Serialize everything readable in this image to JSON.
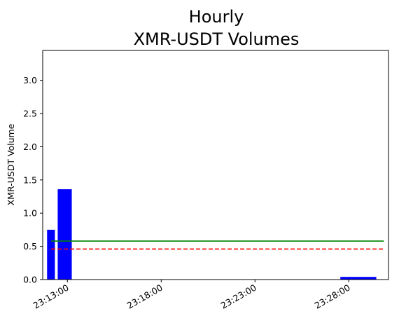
{
  "chart_data": {
    "type": "bar",
    "title_lines": [
      "Hourly",
      "XMR-USDT Volumes"
    ],
    "xlabel": "",
    "ylabel": "XMR-USDT Volume",
    "ylim": [
      0,
      3.45
    ],
    "xlim": [
      "23:11:41",
      "23:30:07"
    ],
    "yticks": [
      0.0,
      0.5,
      1.0,
      1.5,
      2.0,
      2.5,
      3.0
    ],
    "ytick_labels": [
      "0.0",
      "0.5",
      "1.0",
      "1.5",
      "2.0",
      "2.5",
      "3.0"
    ],
    "xticks": [
      "23:13:00",
      "23:18:00",
      "23:23:00",
      "23:28:00"
    ],
    "xtick_labels": [
      "23:13:00",
      "23:18:00",
      "23:23:00",
      "23:28:00"
    ],
    "bar_color": "#0000ff",
    "bars": [
      {
        "start": "23:11:55",
        "end": "23:12:20",
        "value": 0.75
      },
      {
        "start": "23:12:29",
        "end": "23:13:14",
        "value": 1.36
      },
      {
        "start": "23:27:33",
        "end": "23:29:28",
        "value": 0.04
      }
    ],
    "reference_lines": [
      {
        "style": "solid",
        "color": "#008000",
        "value": 0.58,
        "start": "23:12:08",
        "end": "23:29:52"
      },
      {
        "style": "dashed",
        "color": "#ff0000",
        "value": 0.46,
        "start": "23:12:08",
        "end": "23:29:52"
      }
    ],
    "grid": false,
    "legend": "none"
  }
}
